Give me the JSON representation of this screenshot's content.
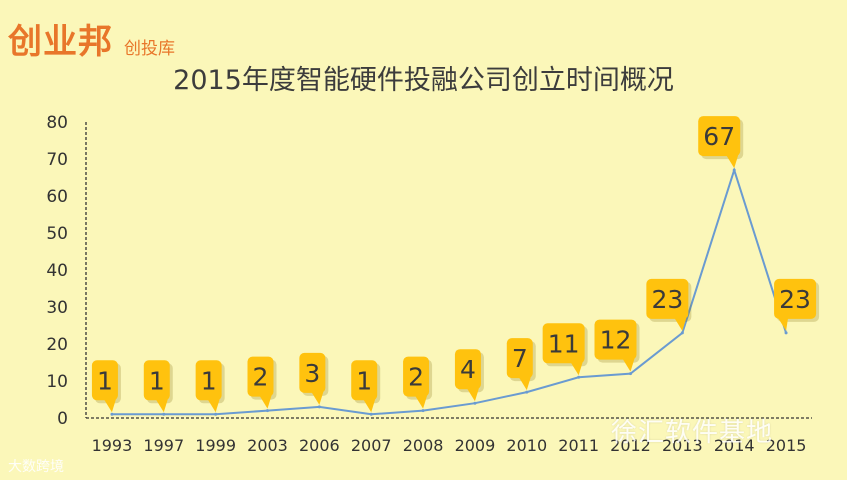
{
  "header": {
    "logo": "创业邦",
    "logo_sub": "创投库"
  },
  "watermark": "徐汇软件基地",
  "source": "大数跨境",
  "chart_data": {
    "type": "line",
    "title": "2015年度智能硬件投融公司创立时间概况",
    "xlabel": "",
    "ylabel": "",
    "categories": [
      "1993",
      "1997",
      "1999",
      "2003",
      "2006",
      "2007",
      "2008",
      "2009",
      "2010",
      "2011",
      "2012",
      "2013",
      "2014",
      "2015"
    ],
    "series": [
      {
        "values": [
          1,
          1,
          1,
          2,
          3,
          1,
          2,
          4,
          7,
          11,
          12,
          23,
          67,
          23
        ]
      }
    ],
    "ylim": [
      0,
      80
    ],
    "yticks": [
      0,
      10,
      20,
      30,
      40,
      50,
      60,
      70,
      80
    ],
    "grid": false,
    "legend": "none",
    "colors": {
      "line": "#6a9bd1",
      "label_fill": "#ffc20e",
      "label_text": "#3a3a3a",
      "axis": "#333333"
    }
  }
}
